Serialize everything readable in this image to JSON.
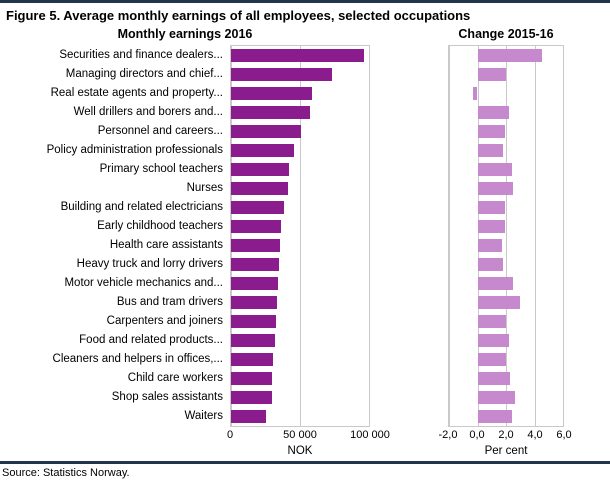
{
  "figure": {
    "title": "Figure 5. Average monthly earnings of all employees, selected occupations",
    "source": "Source: Statistics Norway."
  },
  "chart_data": {
    "type": "bar",
    "orientation": "horizontal",
    "grid": true,
    "legend": "none",
    "categories": [
      "Securities and finance dealers...",
      "Managing directors and chief...",
      "Real estate agents and property...",
      "Well drillers and borers and...",
      "Personnel and careers...",
      "Policy administration professionals",
      "Primary school teachers",
      "Nurses",
      "Building and related electricians",
      "Early childhood teachers",
      "Health care assistants",
      "Heavy truck and lorry drivers",
      "Motor vehicle mechanics and...",
      "Bus and tram drivers",
      "Carpenters and joiners",
      "Food and related products...",
      "Cleaners and helpers in offices,...",
      "Child care workers",
      "Shop sales assistants",
      "Waiters"
    ],
    "series": [
      {
        "name": "Monthly earnings 2016",
        "xlabel": "NOK",
        "color": "#8b1c8d",
        "axis": {
          "min": 0,
          "max": 100000,
          "tick_values": [
            0,
            50000,
            100000
          ],
          "ticks": [
            "0",
            "50 000",
            "100 000"
          ]
        },
        "values": [
          96500,
          73000,
          59000,
          57000,
          51000,
          45500,
          42000,
          41000,
          38500,
          36500,
          35500,
          34500,
          34000,
          33500,
          32500,
          32000,
          30500,
          30000,
          29500,
          25500
        ]
      },
      {
        "name": "Change 2015-16",
        "xlabel": "Per cent",
        "color": "#c789ce",
        "axis": {
          "min": -2,
          "max": 6,
          "tick_values": [
            -2,
            0,
            2,
            4,
            6
          ],
          "ticks": [
            "-2,0",
            "0,0",
            "2,0",
            "4,0",
            "6,0"
          ]
        },
        "values": [
          4.5,
          2.0,
          -0.3,
          2.2,
          1.9,
          1.8,
          2.4,
          2.5,
          1.9,
          1.9,
          1.7,
          1.8,
          2.5,
          3.0,
          2.0,
          2.2,
          2.0,
          2.3,
          2.6,
          2.4
        ]
      }
    ]
  }
}
